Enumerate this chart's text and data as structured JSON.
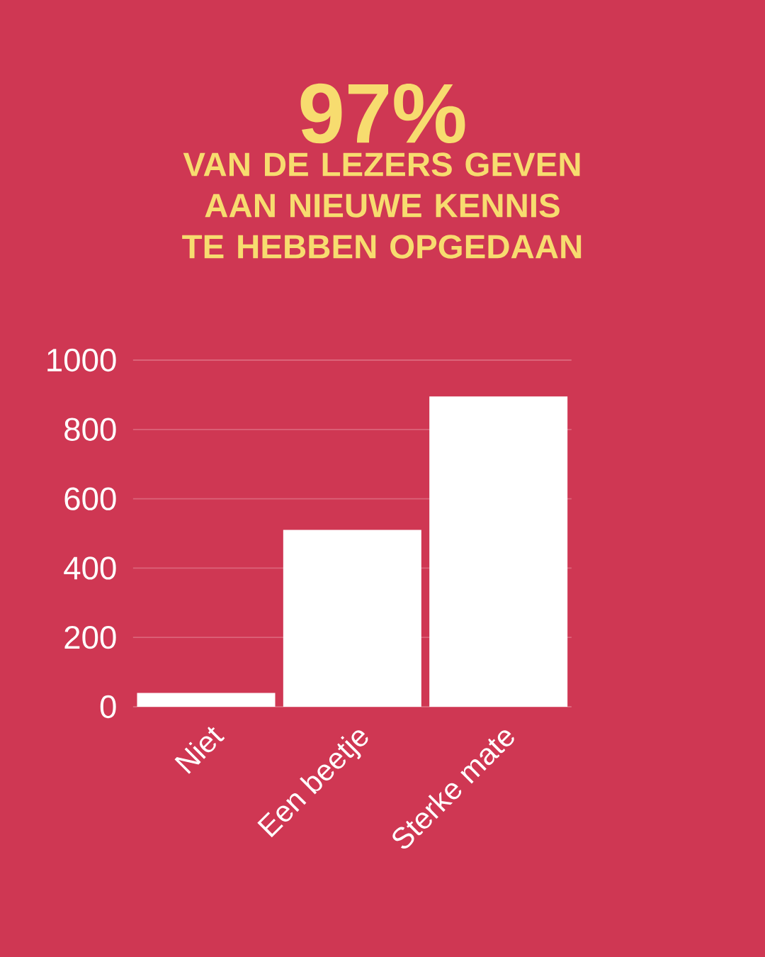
{
  "chart_data": {
    "type": "bar",
    "title": "97%",
    "subtitle": "VAN DE LEZERS GEVEN AAN NIEUWE KENNIS TE HEBBEN OPGEDAAN",
    "categories": [
      "Niet",
      "Een beetje",
      "Sterke mate"
    ],
    "values": [
      40,
      510,
      895
    ],
    "color": "#ffffff",
    "ylim": [
      0,
      1000
    ],
    "yticks": [
      0,
      200,
      400,
      600,
      800,
      1000
    ],
    "grid": "y"
  }
}
